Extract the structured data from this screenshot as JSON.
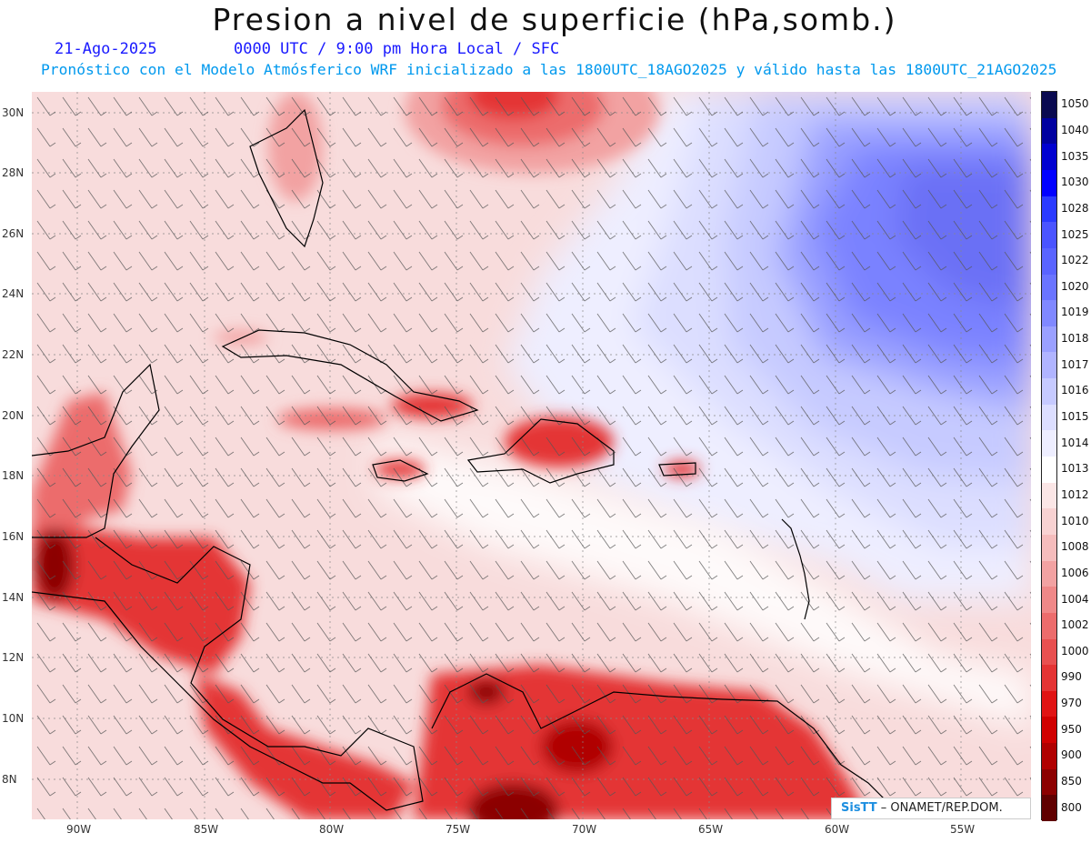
{
  "header": {
    "title": "Presion a nivel de superficie (hPa,somb.)",
    "date": "21-Ago-2025",
    "valid_time": "0000 UTC / 9:00 pm Hora Local / SFC",
    "forecast_note": "Pronóstico con el Modelo Atmósferico WRF inicializado a las 1800UTC_18AGO2025 y válido hasta las  1800UTC_21AGO2025"
  },
  "axes": {
    "lat_labels": [
      "30N",
      "28N",
      "26N",
      "24N",
      "22N",
      "20N",
      "18N",
      "16N",
      "14N",
      "12N",
      "10N",
      "8N"
    ],
    "lon_labels": [
      "90W",
      "85W",
      "80W",
      "75W",
      "70W",
      "65W",
      "60W",
      "55W"
    ]
  },
  "colorbar": {
    "levels": [
      "1050",
      "1040",
      "1035",
      "1030",
      "1028",
      "1025",
      "1022",
      "1020",
      "1019",
      "1018",
      "1017",
      "1016",
      "1015",
      "1014",
      "1013",
      "1012",
      "1010",
      "1008",
      "1006",
      "1004",
      "1002",
      "1000",
      "990",
      "970",
      "950",
      "900",
      "850",
      "800"
    ],
    "colors": [
      "#0a0a50",
      "#0000a0",
      "#0000d0",
      "#0000ff",
      "#2a3aff",
      "#4a54ff",
      "#5a64ff",
      "#6a74ff",
      "#8088ff",
      "#9aa0ff",
      "#b0b4ff",
      "#c6caff",
      "#dcdeff",
      "#eeeeff",
      "#ffffff",
      "#fbe6e6",
      "#f8d2d2",
      "#f5bcbc",
      "#f2a2a2",
      "#ef8888",
      "#ec6c6c",
      "#e85050",
      "#e43434",
      "#e01414",
      "#d00000",
      "#b00000",
      "#8c0000",
      "#600000"
    ]
  },
  "credit": {
    "logo": "SisTT",
    "text": " – ONAMET/REP.DOM."
  }
}
